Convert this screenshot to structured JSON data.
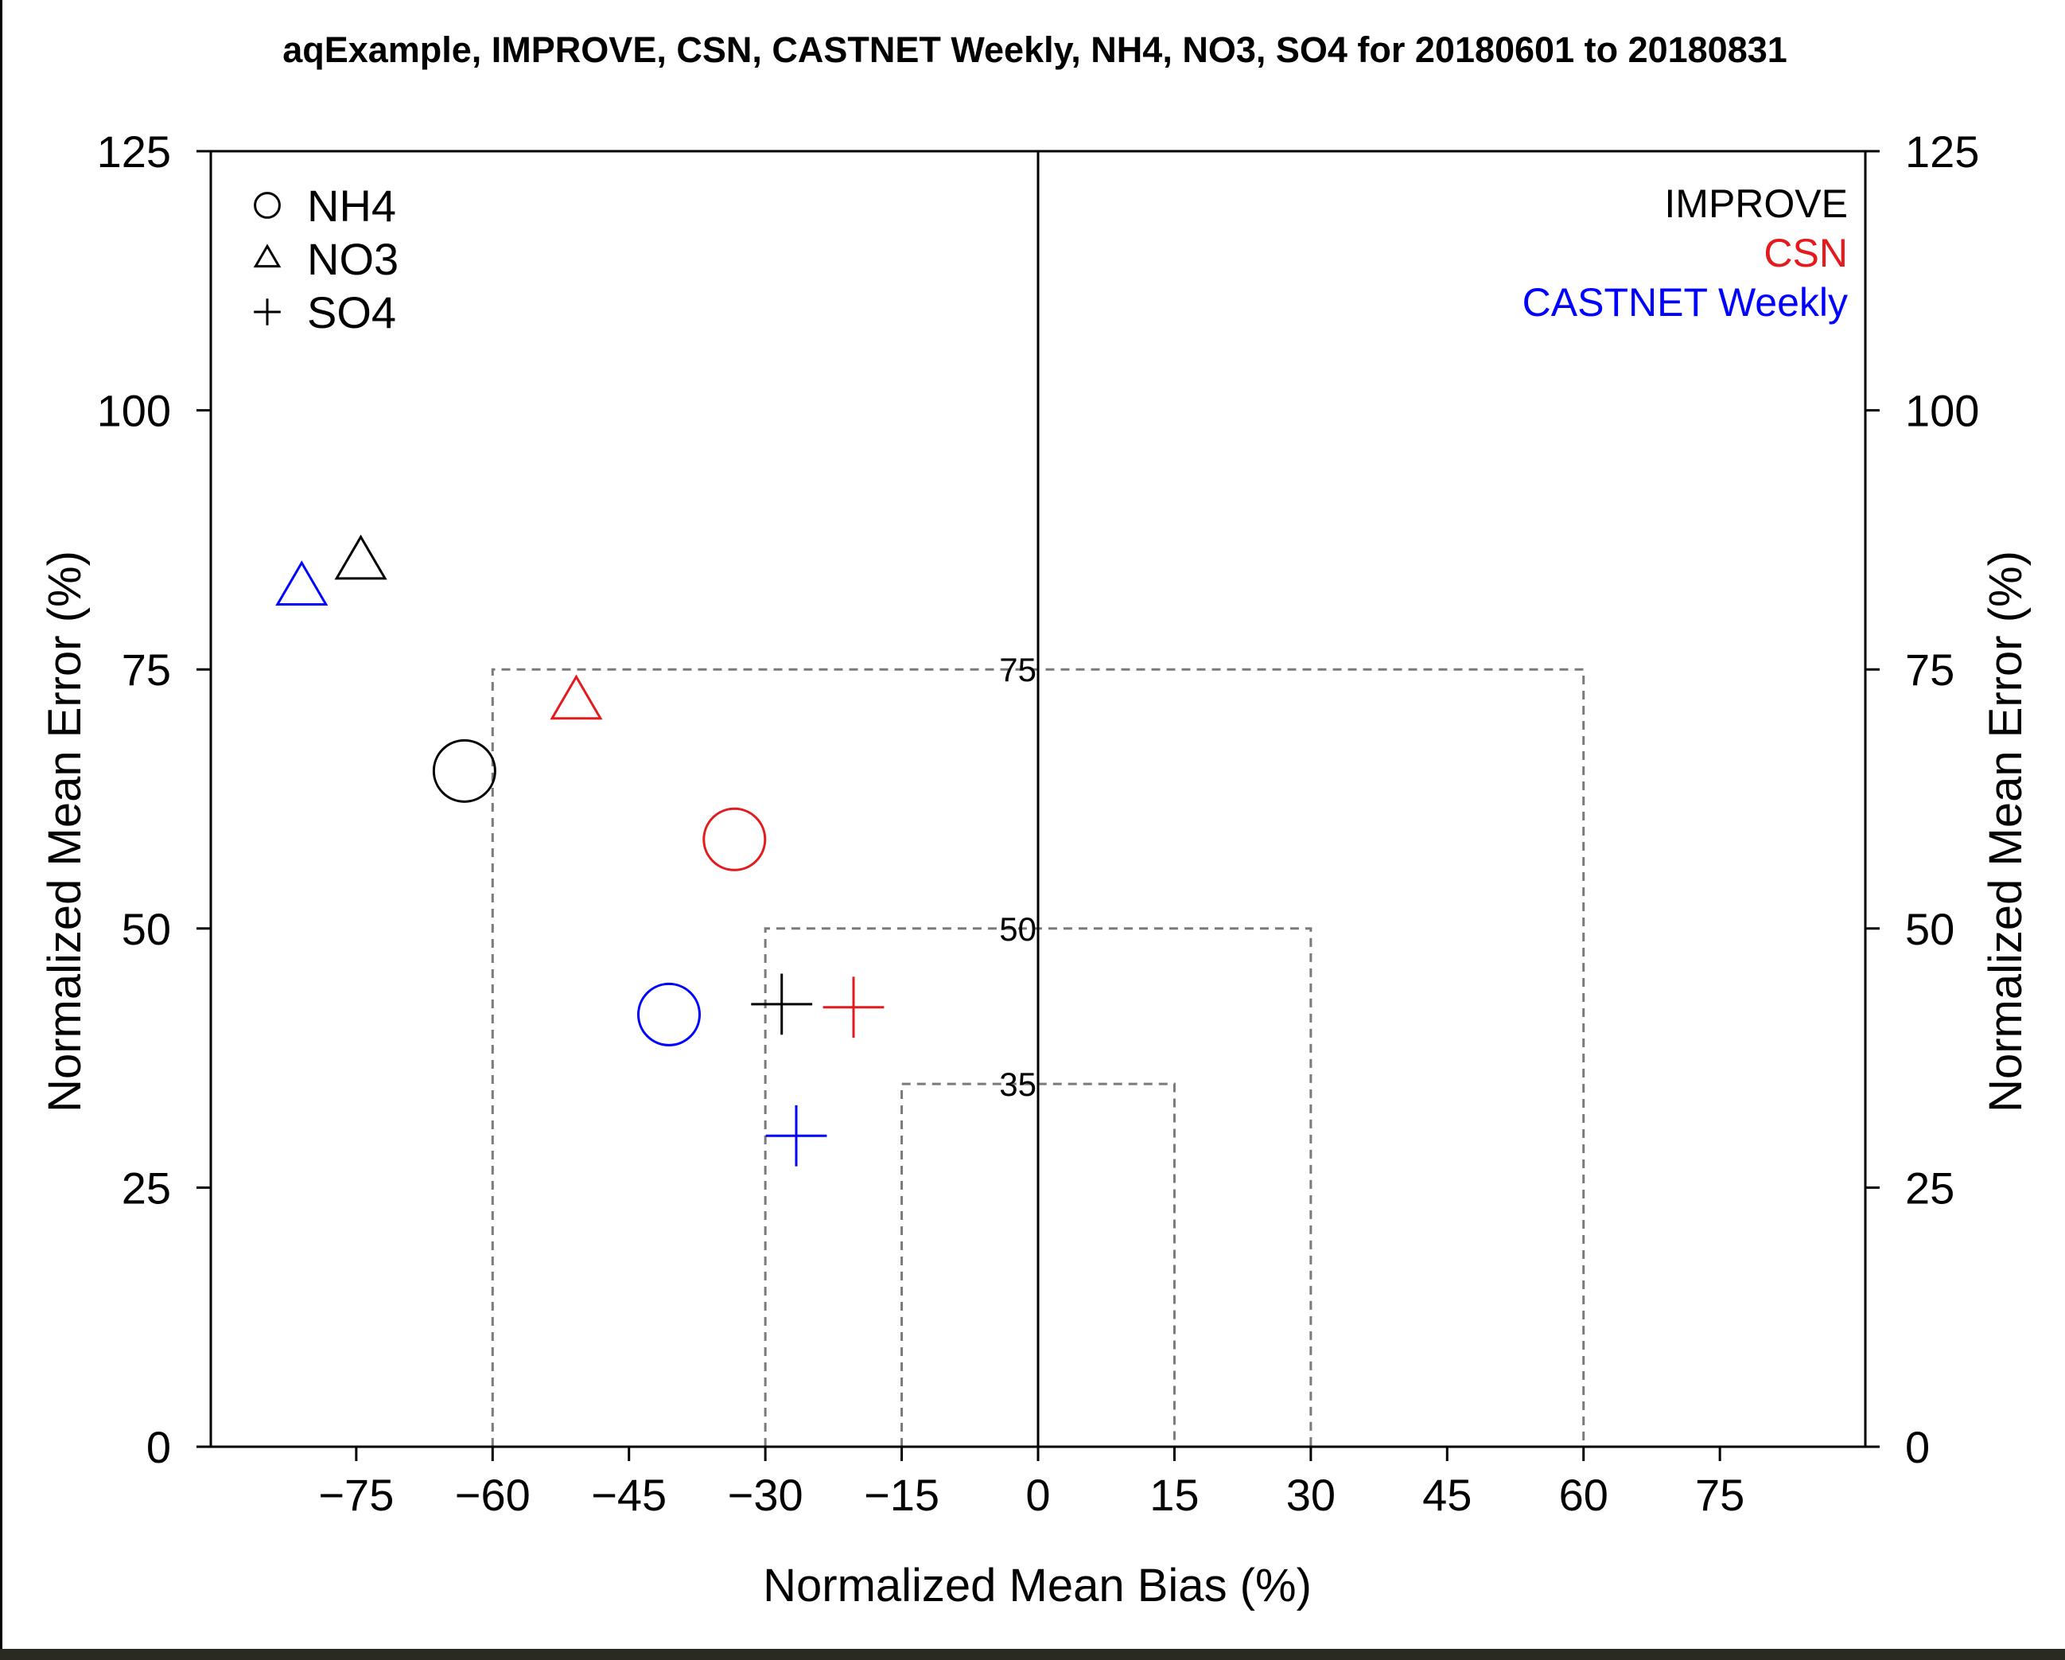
{
  "chart_data": {
    "type": "scatter",
    "title": "aqExample, IMPROVE, CSN, CASTNET Weekly, NH4, NO3, SO4 for 20180601 to 20180831",
    "xlabel": "Normalized Mean Bias (%)",
    "ylabel": "Normalized Mean Error (%)",
    "ylabel_right": "Normalized Mean Error (%)",
    "xlim": [
      -91,
      91
    ],
    "ylim": [
      0,
      125
    ],
    "xticks": [
      -75,
      -60,
      -45,
      -30,
      -15,
      0,
      15,
      30,
      45,
      60,
      75
    ],
    "xtick_labels": [
      "−75",
      "−60",
      "−45",
      "−30",
      "−15",
      "0",
      "15",
      "30",
      "45",
      "60",
      "75"
    ],
    "yticks": [
      0,
      25,
      50,
      75,
      100,
      125
    ],
    "ytick_labels": [
      "0",
      "25",
      "50",
      "75",
      "100",
      "125"
    ],
    "grid": false,
    "zero_line": true,
    "goal_boxes": [
      {
        "label": "75",
        "bias_limit": 60,
        "error_limit": 75
      },
      {
        "label": "50",
        "bias_limit": 30,
        "error_limit": 50
      },
      {
        "label": "35",
        "bias_limit": 15,
        "error_limit": 35
      }
    ],
    "symbol_legend": {
      "position": "top-left",
      "entries": [
        {
          "label": "NH4",
          "marker": "circle"
        },
        {
          "label": "NO3",
          "marker": "triangle"
        },
        {
          "label": "SO4",
          "marker": "plus"
        }
      ]
    },
    "network_legend": {
      "position": "top-right",
      "entries": [
        {
          "label": "IMPROVE",
          "color": "#000000"
        },
        {
          "label": "CSN",
          "color": "#e41a1c"
        },
        {
          "label": "CASTNET Weekly",
          "color": "#0000ff"
        }
      ]
    },
    "points": [
      {
        "network": "IMPROVE",
        "species": "NH4",
        "marker": "circle",
        "color": "#000000",
        "x": -63.1,
        "y": 65.2
      },
      {
        "network": "IMPROVE",
        "species": "NO3",
        "marker": "triangle",
        "color": "#000000",
        "x": -74.5,
        "y": 85.3
      },
      {
        "network": "IMPROVE",
        "species": "SO4",
        "marker": "plus",
        "color": "#000000",
        "x": -28.2,
        "y": 42.7
      },
      {
        "network": "CSN",
        "species": "NH4",
        "marker": "circle",
        "color": "#e41a1c",
        "x": -33.4,
        "y": 58.6
      },
      {
        "network": "CSN",
        "species": "NO3",
        "marker": "triangle",
        "color": "#e41a1c",
        "x": -50.8,
        "y": 71.8
      },
      {
        "network": "CSN",
        "species": "SO4",
        "marker": "plus",
        "color": "#e41a1c",
        "x": -20.3,
        "y": 42.4
      },
      {
        "network": "CASTNET Weekly",
        "species": "NH4",
        "marker": "circle",
        "color": "#0000ff",
        "x": -40.6,
        "y": 41.7
      },
      {
        "network": "CASTNET Weekly",
        "species": "NO3",
        "marker": "triangle",
        "color": "#0000ff",
        "x": -81.0,
        "y": 82.8
      },
      {
        "network": "CASTNET Weekly",
        "species": "SO4",
        "marker": "plus",
        "color": "#0000ff",
        "x": -26.6,
        "y": 30.0
      }
    ]
  }
}
